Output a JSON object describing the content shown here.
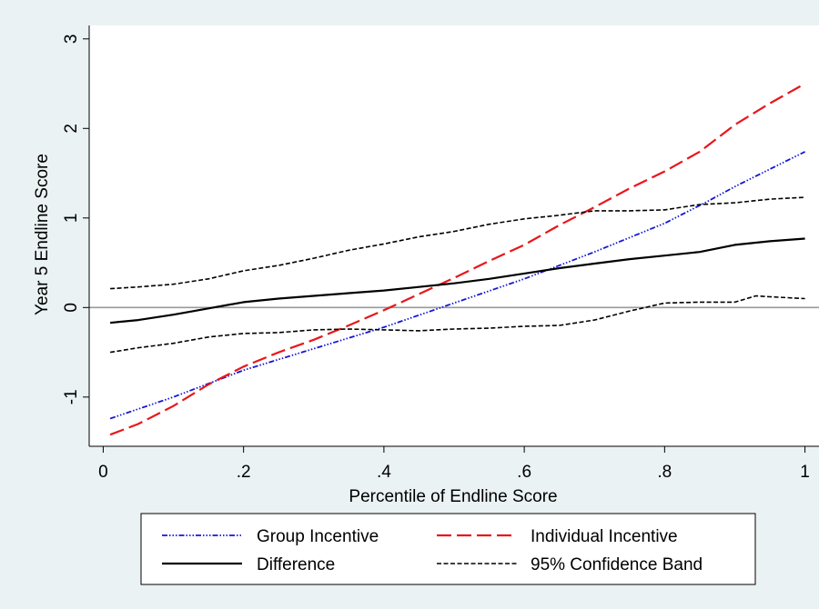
{
  "chart_data": {
    "type": "line",
    "xlabel": "Percentile of Endline Score",
    "ylabel": "Year 5 Endline Score",
    "xlim": [
      -0.02,
      1.02
    ],
    "ylim": [
      -1.55,
      3.15
    ],
    "x_ticks": [
      0,
      0.2,
      0.4,
      0.6,
      0.8,
      1
    ],
    "x_tick_labels": [
      "0",
      ".2",
      ".4",
      ".6",
      ".8",
      "1"
    ],
    "y_ticks": [
      -1,
      0,
      1,
      2,
      3
    ],
    "y_tick_labels": [
      "-1",
      "0",
      "1",
      "2",
      "3"
    ],
    "reference_line_y": 0,
    "legend_position": "bottom",
    "colors": {
      "background": "#eaf2f3",
      "plot_area": "#ffffff",
      "group": "#1515d6",
      "individual": "#e8161a",
      "difference": "#000000",
      "band": "#000000",
      "reference": "#9a9a9a"
    },
    "series": [
      {
        "name": "Group Incentive",
        "key": "group",
        "x": [
          0.01,
          0.1,
          0.2,
          0.3,
          0.4,
          0.5,
          0.6,
          0.7,
          0.8,
          0.86,
          0.9,
          1.0
        ],
        "y": [
          -1.24,
          -1.0,
          -0.7,
          -0.46,
          -0.22,
          0.05,
          0.32,
          0.62,
          0.94,
          1.18,
          1.35,
          1.74
        ]
      },
      {
        "name": "Individual Incentive",
        "key": "individual",
        "x": [
          0.01,
          0.05,
          0.1,
          0.15,
          0.2,
          0.25,
          0.3,
          0.35,
          0.4,
          0.45,
          0.5,
          0.55,
          0.6,
          0.65,
          0.7,
          0.75,
          0.8,
          0.85,
          0.9,
          0.95,
          1.0
        ],
        "y": [
          -1.42,
          -1.3,
          -1.1,
          -0.86,
          -0.66,
          -0.5,
          -0.36,
          -0.2,
          -0.03,
          0.15,
          0.33,
          0.52,
          0.7,
          0.92,
          1.12,
          1.33,
          1.52,
          1.74,
          2.04,
          2.28,
          2.5
        ]
      },
      {
        "name": "Difference",
        "key": "difference",
        "x": [
          0.01,
          0.05,
          0.1,
          0.15,
          0.2,
          0.25,
          0.3,
          0.35,
          0.4,
          0.45,
          0.5,
          0.55,
          0.6,
          0.65,
          0.7,
          0.75,
          0.8,
          0.85,
          0.9,
          0.95,
          1.0
        ],
        "y": [
          -0.17,
          -0.14,
          -0.08,
          -0.01,
          0.06,
          0.1,
          0.13,
          0.16,
          0.19,
          0.23,
          0.27,
          0.32,
          0.38,
          0.44,
          0.49,
          0.54,
          0.58,
          0.62,
          0.7,
          0.74,
          0.77
        ]
      },
      {
        "name": "95% Confidence Band",
        "key": "band_upper",
        "x": [
          0.01,
          0.05,
          0.1,
          0.15,
          0.2,
          0.25,
          0.3,
          0.35,
          0.4,
          0.45,
          0.5,
          0.55,
          0.6,
          0.65,
          0.7,
          0.75,
          0.8,
          0.85,
          0.9,
          0.95,
          1.0
        ],
        "y": [
          0.21,
          0.23,
          0.26,
          0.32,
          0.41,
          0.47,
          0.55,
          0.64,
          0.71,
          0.79,
          0.85,
          0.93,
          0.99,
          1.03,
          1.08,
          1.08,
          1.09,
          1.15,
          1.17,
          1.21,
          1.23
        ]
      },
      {
        "name": "",
        "key": "band_lower",
        "x": [
          0.01,
          0.05,
          0.1,
          0.15,
          0.2,
          0.25,
          0.3,
          0.35,
          0.4,
          0.45,
          0.5,
          0.55,
          0.6,
          0.65,
          0.7,
          0.75,
          0.8,
          0.85,
          0.9,
          0.93,
          0.95,
          1.0
        ],
        "y": [
          -0.5,
          -0.45,
          -0.4,
          -0.33,
          -0.29,
          -0.28,
          -0.25,
          -0.24,
          -0.25,
          -0.26,
          -0.24,
          -0.23,
          -0.21,
          -0.2,
          -0.14,
          -0.04,
          0.05,
          0.06,
          0.06,
          0.13,
          0.12,
          0.1
        ]
      }
    ],
    "legend": [
      {
        "label": "Group Incentive",
        "key": "group"
      },
      {
        "label": "Individual Incentive",
        "key": "individual"
      },
      {
        "label": "Difference",
        "key": "difference"
      },
      {
        "label": "95% Confidence Band",
        "key": "band"
      }
    ]
  }
}
